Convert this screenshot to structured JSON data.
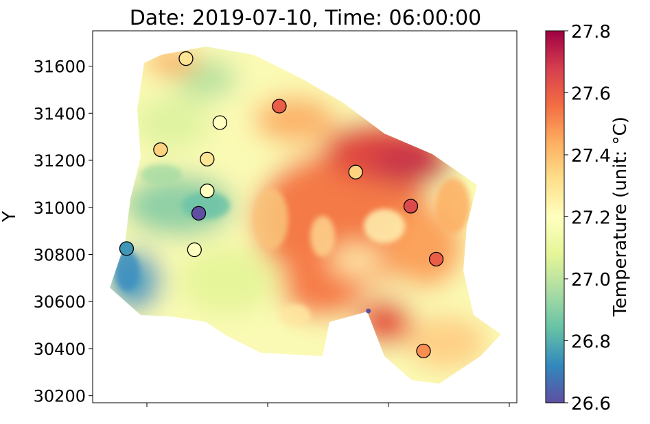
{
  "chart_data": {
    "type": "heatmap",
    "title": "Date: 2019-07-10, Time: 06:00:00",
    "ylabel": "Y",
    "xlabel": "",
    "ylim": [
      30170,
      31750
    ],
    "yticks": [
      30200,
      30400,
      30600,
      30800,
      31000,
      31200,
      31400,
      31600
    ],
    "colorbar": {
      "label": "Temperature (unit: °C)",
      "min": 26.6,
      "max": 27.8,
      "ticks": [
        "26.6",
        "26.8",
        "27.0",
        "27.2",
        "27.4",
        "27.6",
        "27.8"
      ],
      "colormap": "Spectral_r",
      "stops": [
        "#5e4fa2",
        "#3288bd",
        "#66c2a5",
        "#abdda4",
        "#e6f598",
        "#ffffbf",
        "#fee08b",
        "#fdae61",
        "#f46d43",
        "#d53e4f",
        "#9e0142"
      ]
    },
    "stations": [
      {
        "x": 0.22,
        "y": 31632,
        "value": 27.3
      },
      {
        "x": 0.3,
        "y": 31360,
        "value": 27.2
      },
      {
        "x": 0.16,
        "y": 31245,
        "value": 27.35
      },
      {
        "x": 0.27,
        "y": 31205,
        "value": 27.3
      },
      {
        "x": 0.27,
        "y": 31070,
        "value": 27.2
      },
      {
        "x": 0.25,
        "y": 30975,
        "value": 26.6
      },
      {
        "x": 0.24,
        "y": 30820,
        "value": 27.2
      },
      {
        "x": 0.08,
        "y": 30825,
        "value": 26.75
      },
      {
        "x": 0.44,
        "y": 31430,
        "value": 27.6
      },
      {
        "x": 0.62,
        "y": 31150,
        "value": 27.35
      },
      {
        "x": 0.75,
        "y": 31005,
        "value": 27.65
      },
      {
        "x": 0.81,
        "y": 30780,
        "value": 27.6
      },
      {
        "x": 0.78,
        "y": 30390,
        "value": 27.5
      },
      {
        "x": 0.65,
        "y": 30560,
        "value": 26.6
      }
    ]
  }
}
